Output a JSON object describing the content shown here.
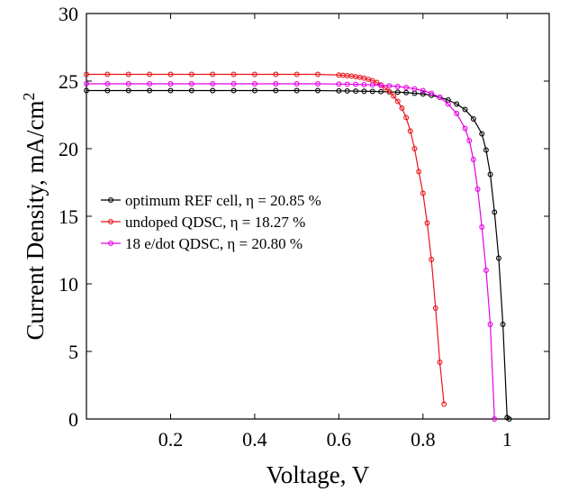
{
  "chart_data": {
    "type": "line",
    "xlabel": "Voltage, V",
    "ylabel": "Current Density, mA/cm",
    "ylabel_sup": "2",
    "xlim": [
      0,
      1.1
    ],
    "ylim": [
      0,
      30
    ],
    "xticks": [
      0.2,
      0.4,
      0.6,
      0.8,
      1.0
    ],
    "xtick_labels": [
      "0.2",
      "0.4",
      "0.6",
      "0.8",
      "1"
    ],
    "yticks": [
      0,
      5,
      10,
      15,
      20,
      25,
      30
    ],
    "ytick_labels": [
      "0",
      "5",
      "10",
      "15",
      "20",
      "25",
      "30"
    ],
    "grid": false,
    "legend_position": "center-left",
    "series": [
      {
        "name": "optimum REF cell, η = 20.85 %",
        "color": "#000000",
        "x": [
          0,
          0.05,
          0.1,
          0.15,
          0.2,
          0.25,
          0.3,
          0.35,
          0.4,
          0.45,
          0.5,
          0.55,
          0.6,
          0.62,
          0.64,
          0.66,
          0.68,
          0.7,
          0.72,
          0.74,
          0.76,
          0.78,
          0.8,
          0.82,
          0.84,
          0.86,
          0.88,
          0.9,
          0.92,
          0.94,
          0.95,
          0.96,
          0.97,
          0.98,
          0.99,
          1.0,
          1.005
        ],
        "y": [
          24.3,
          24.3,
          24.3,
          24.3,
          24.3,
          24.3,
          24.3,
          24.3,
          24.3,
          24.3,
          24.3,
          24.3,
          24.28,
          24.27,
          24.26,
          24.25,
          24.24,
          24.22,
          24.2,
          24.18,
          24.15,
          24.1,
          24.05,
          23.95,
          23.8,
          23.6,
          23.3,
          22.9,
          22.2,
          21.1,
          19.9,
          18.1,
          15.3,
          11.9,
          7.0,
          0.1,
          0.0
        ]
      },
      {
        "name": "undoped QDSC, η = 18.27 %",
        "color": "#e8141b",
        "x": [
          0,
          0.05,
          0.1,
          0.15,
          0.2,
          0.25,
          0.3,
          0.35,
          0.4,
          0.45,
          0.5,
          0.55,
          0.6,
          0.61,
          0.62,
          0.63,
          0.64,
          0.65,
          0.66,
          0.67,
          0.68,
          0.69,
          0.7,
          0.71,
          0.72,
          0.73,
          0.74,
          0.75,
          0.76,
          0.77,
          0.78,
          0.79,
          0.8,
          0.81,
          0.82,
          0.83,
          0.84,
          0.85
        ],
        "y": [
          25.5,
          25.5,
          25.5,
          25.5,
          25.5,
          25.5,
          25.5,
          25.5,
          25.5,
          25.5,
          25.5,
          25.5,
          25.45,
          25.43,
          25.4,
          25.37,
          25.33,
          25.28,
          25.22,
          25.14,
          25.03,
          24.9,
          24.72,
          24.5,
          24.22,
          23.9,
          23.5,
          23.0,
          22.3,
          21.3,
          20.0,
          18.3,
          16.7,
          14.5,
          11.8,
          8.2,
          4.2,
          1.1
        ]
      },
      {
        "name": "18 e/dot QDSC, η = 20.80 %",
        "color": "#e600e6",
        "x": [
          0,
          0.05,
          0.1,
          0.15,
          0.2,
          0.25,
          0.3,
          0.35,
          0.4,
          0.45,
          0.5,
          0.55,
          0.6,
          0.62,
          0.64,
          0.66,
          0.68,
          0.7,
          0.72,
          0.74,
          0.76,
          0.78,
          0.8,
          0.82,
          0.84,
          0.86,
          0.88,
          0.9,
          0.91,
          0.92,
          0.93,
          0.94,
          0.95,
          0.96,
          0.97
        ],
        "y": [
          24.8,
          24.8,
          24.8,
          24.8,
          24.8,
          24.8,
          24.8,
          24.8,
          24.8,
          24.8,
          24.8,
          24.8,
          24.78,
          24.77,
          24.76,
          24.74,
          24.72,
          24.69,
          24.65,
          24.6,
          24.53,
          24.43,
          24.3,
          24.1,
          23.8,
          23.3,
          22.6,
          21.5,
          20.6,
          19.2,
          17.0,
          14.2,
          11.0,
          7.0,
          0.0
        ]
      }
    ]
  }
}
